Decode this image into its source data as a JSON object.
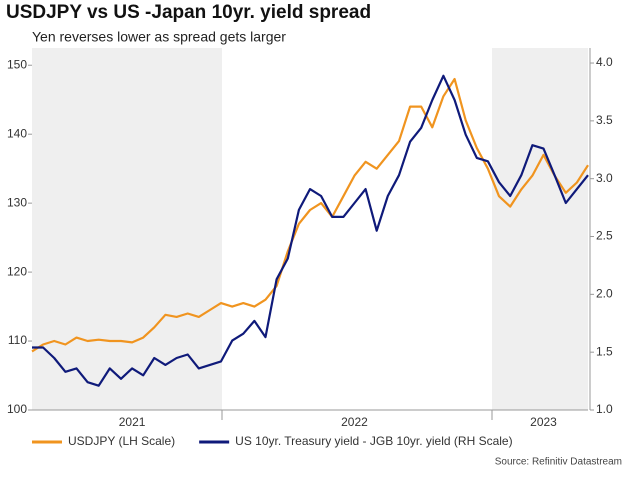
{
  "chart_data": {
    "type": "line",
    "title": "USDJPY vs US -Japan 10yr. yield spread",
    "subtitle": "Yen reverses lower as spread gets larger",
    "source": "Source: Refinitiv Datastream",
    "categories": [
      null,
      null,
      null,
      null,
      null,
      null,
      null,
      null,
      null,
      "2021",
      null,
      null,
      null,
      null,
      null,
      null,
      null,
      null,
      null,
      null,
      null,
      null,
      null,
      null,
      null,
      null,
      null,
      null,
      null,
      "2022",
      null,
      null,
      null,
      null,
      null,
      null,
      null,
      null,
      null,
      null,
      null,
      null,
      null,
      null,
      null,
      null,
      "2023",
      null,
      null,
      null,
      null
    ],
    "series": [
      {
        "name": "USDJPY (LH Scale)",
        "color": "#f0941f",
        "axis": "y",
        "values": [
          108.5,
          109.5,
          110,
          109.5,
          110.5,
          110,
          110.2,
          110,
          110,
          109.8,
          110.5,
          112,
          113.8,
          113.5,
          114,
          113.5,
          114.5,
          115.5,
          115,
          115.5,
          115,
          116,
          118,
          123,
          127,
          129,
          130,
          128,
          131,
          134,
          136,
          135,
          137,
          139,
          144,
          144,
          141,
          145.5,
          148,
          142,
          138,
          135,
          131,
          129.5,
          132,
          134,
          137,
          134,
          131.5,
          133,
          135.5
        ]
      },
      {
        "name": "US 10yr. Treasury yield - JGB 10yr. yield (RH Scale)",
        "color": "#0f1a7a",
        "axis": "y2",
        "values": [
          1.54,
          1.54,
          1.45,
          1.33,
          1.36,
          1.24,
          1.21,
          1.36,
          1.27,
          1.36,
          1.3,
          1.45,
          1.39,
          1.45,
          1.48,
          1.36,
          1.39,
          1.42,
          1.6,
          1.66,
          1.77,
          1.63,
          2.13,
          2.31,
          2.73,
          2.91,
          2.85,
          2.67,
          2.67,
          2.79,
          2.91,
          2.55,
          2.85,
          3.03,
          3.32,
          3.44,
          3.68,
          3.89,
          3.68,
          3.38,
          3.18,
          3.15,
          2.97,
          2.85,
          3.03,
          3.29,
          3.26,
          3.03,
          2.79,
          2.91,
          3.03
        ]
      }
    ],
    "ylim": [
      100,
      152.5
    ],
    "yticks": [
      100,
      110,
      120,
      130,
      140,
      150
    ],
    "y2lim": [
      1.0,
      4.13
    ],
    "y2ticks": [
      {
        "value": 1.0,
        "label": "1.0"
      },
      {
        "value": 1.5,
        "label": "1.5"
      },
      {
        "value": 2.0,
        "label": "2.0"
      },
      {
        "value": 2.5,
        "label": "2.5"
      },
      {
        "value": 3.0,
        "label": "3.0"
      },
      {
        "value": 3.5,
        "label": "3.5"
      },
      {
        "value": 4.0,
        "label": "4.0"
      }
    ],
    "legend": "bottom"
  }
}
